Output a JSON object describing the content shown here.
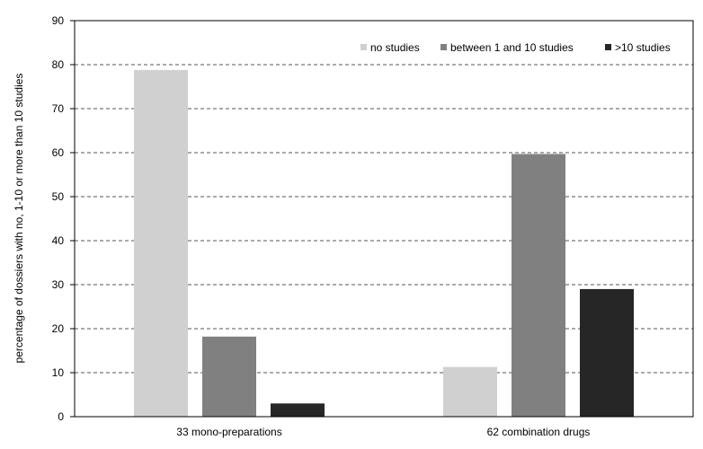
{
  "chart_data": {
    "type": "bar",
    "categories": [
      "33 mono-preparations",
      "62 combination drugs"
    ],
    "series": [
      {
        "name": "no studies",
        "values": [
          78.8,
          11.3
        ],
        "color": "#d0d0d0"
      },
      {
        "name": "between 1 and 10 studies",
        "values": [
          18.2,
          59.7
        ],
        "color": "#808080"
      },
      {
        "name": ">10 studies",
        "values": [
          3.0,
          29.0
        ],
        "color": "#262626"
      }
    ],
    "title": "",
    "xlabel": "",
    "ylabel": "percentage of dossiers with no, 1-10 or more than 10 studies",
    "ylim": [
      0,
      90
    ],
    "yticks": [
      0,
      10,
      20,
      30,
      40,
      50,
      60,
      70,
      80,
      90
    ],
    "grid": "horizontal dashed",
    "legend_position": "top-right"
  }
}
